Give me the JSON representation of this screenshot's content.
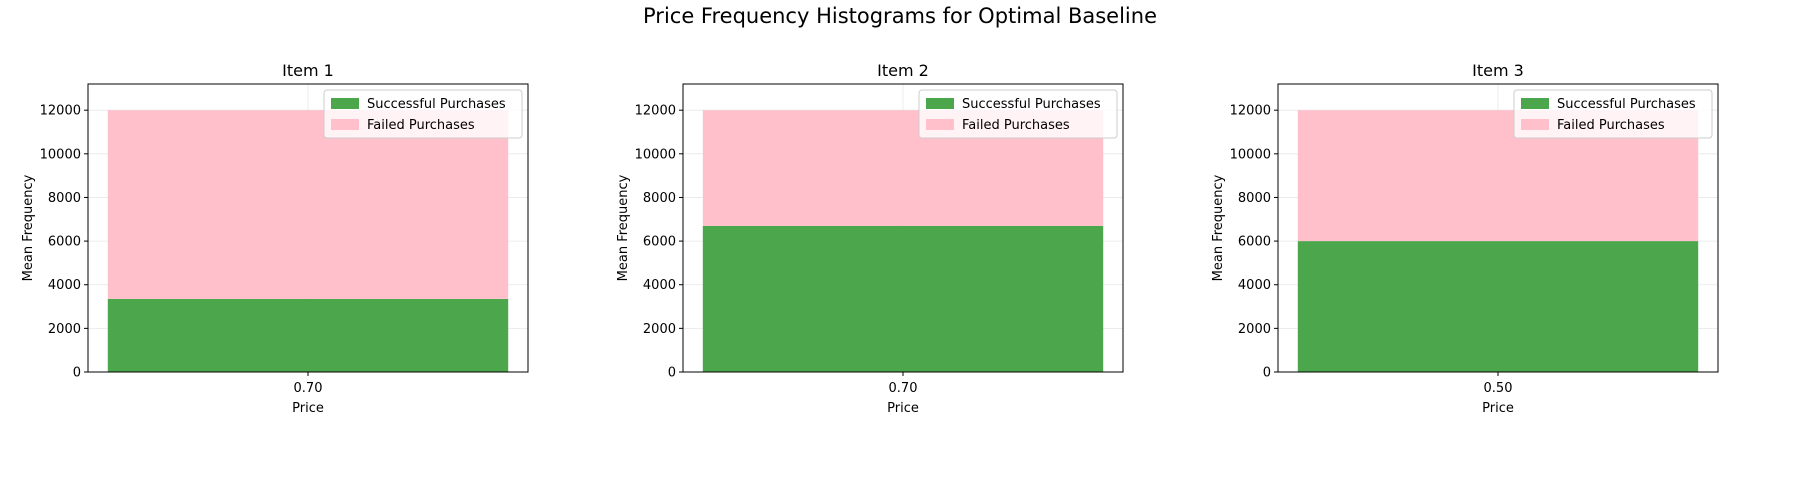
{
  "suptitle": "Price Frequency Histograms for Optimal Baseline",
  "chart_data": [
    {
      "type": "bar",
      "title": "Item 1",
      "xlabel": "Price",
      "ylabel": "Mean Frequency",
      "categories": [
        "0.70"
      ],
      "ylim": [
        0,
        13200
      ],
      "yticks": [
        0,
        2000,
        4000,
        6000,
        8000,
        10000,
        12000
      ],
      "stacked": true,
      "grid": true,
      "legend_position": "top-right",
      "series": [
        {
          "name": "Successful Purchases",
          "values": [
            3350
          ],
          "color": "#4ca64c"
        },
        {
          "name": "Failed Purchases",
          "values": [
            8650
          ],
          "color": "#ffc0cb"
        }
      ]
    },
    {
      "type": "bar",
      "title": "Item 2",
      "xlabel": "Price",
      "ylabel": "Mean Frequency",
      "categories": [
        "0.70"
      ],
      "ylim": [
        0,
        13200
      ],
      "yticks": [
        0,
        2000,
        4000,
        6000,
        8000,
        10000,
        12000
      ],
      "stacked": true,
      "grid": true,
      "legend_position": "top-right",
      "series": [
        {
          "name": "Successful Purchases",
          "values": [
            6700
          ],
          "color": "#4ca64c"
        },
        {
          "name": "Failed Purchases",
          "values": [
            5300
          ],
          "color": "#ffc0cb"
        }
      ]
    },
    {
      "type": "bar",
      "title": "Item 3",
      "xlabel": "Price",
      "ylabel": "Mean Frequency",
      "categories": [
        "0.50"
      ],
      "ylim": [
        0,
        13200
      ],
      "yticks": [
        0,
        2000,
        4000,
        6000,
        8000,
        10000,
        12000
      ],
      "stacked": true,
      "grid": true,
      "legend_position": "top-right",
      "series": [
        {
          "name": "Successful Purchases",
          "values": [
            6000
          ],
          "color": "#4ca64c"
        },
        {
          "name": "Failed Purchases",
          "values": [
            6000
          ],
          "color": "#ffc0cb"
        }
      ]
    }
  ]
}
